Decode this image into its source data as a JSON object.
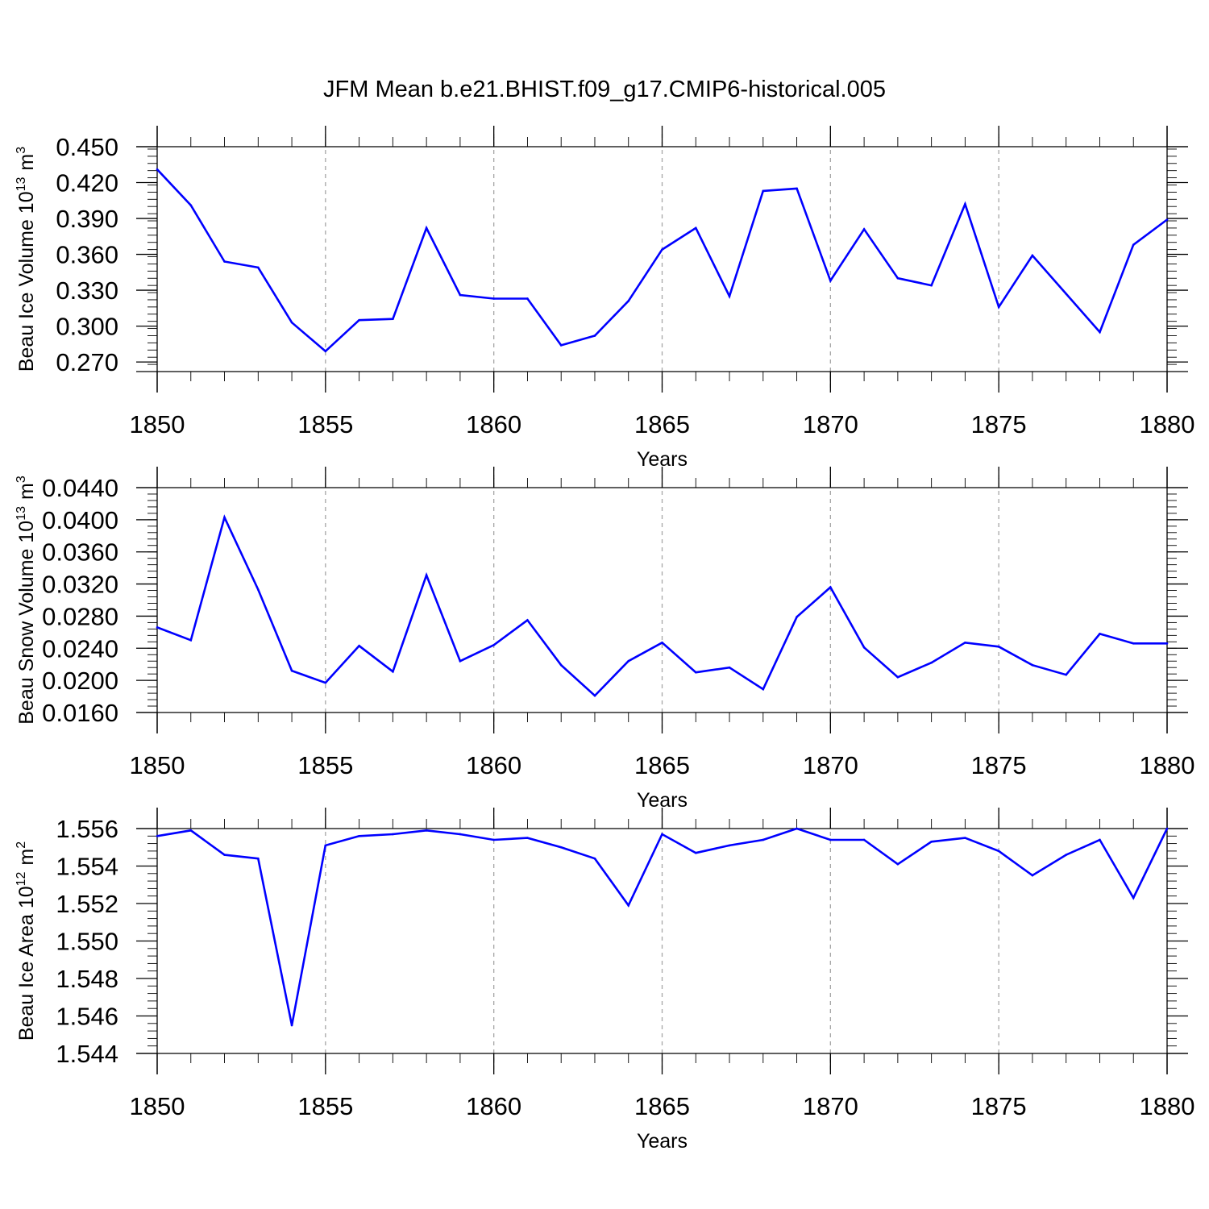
{
  "figure_title": "JFM Mean b.e21.BHIST.f09_g17.CMIP6-historical.005",
  "colors": {
    "line": "#0000ff",
    "axis": "#000000",
    "grid": "#a6a6a6"
  },
  "chart_data": [
    {
      "type": "line",
      "name": "ice-volume",
      "ylabel": "Beau Ice Volume 10",
      "ylabel_exponent": "13",
      "ylabel_unit": "m",
      "ylabel_unit_exponent": "3",
      "xlabel": "Years",
      "xlim": [
        1850,
        1880
      ],
      "ylim": [
        0.262,
        0.45
      ],
      "xticks": [
        1850,
        1855,
        1860,
        1865,
        1870,
        1875,
        1880
      ],
      "xtick_labels": [
        "1850",
        "1855",
        "1860",
        "1865",
        "1870",
        "1875",
        "1880"
      ],
      "yticks": [
        0.27,
        0.3,
        0.33,
        0.36,
        0.39,
        0.42,
        0.45
      ],
      "ytick_labels": [
        "0.270",
        "0.300",
        "0.330",
        "0.360",
        "0.390",
        "0.420",
        "0.450"
      ],
      "yminor_step": 0.006,
      "x": [
        1850,
        1851,
        1852,
        1853,
        1854,
        1855,
        1856,
        1857,
        1858,
        1859,
        1860,
        1861,
        1862,
        1863,
        1864,
        1865,
        1866,
        1867,
        1868,
        1869,
        1870,
        1871,
        1872,
        1873,
        1874,
        1875,
        1876,
        1877,
        1878,
        1879,
        1880
      ],
      "y": [
        0.431,
        0.401,
        0.354,
        0.349,
        0.303,
        0.279,
        0.305,
        0.306,
        0.382,
        0.326,
        0.323,
        0.323,
        0.284,
        0.292,
        0.321,
        0.364,
        0.382,
        0.325,
        0.413,
        0.415,
        0.338,
        0.381,
        0.34,
        0.334,
        0.402,
        0.316,
        0.359,
        0.327,
        0.295,
        0.368,
        0.389
      ]
    },
    {
      "type": "line",
      "name": "snow-volume",
      "ylabel": "Beau Snow Volume 10",
      "ylabel_exponent": "13",
      "ylabel_unit": "m",
      "ylabel_unit_exponent": "3",
      "xlabel": "Years",
      "xlim": [
        1850,
        1880
      ],
      "ylim": [
        0.016,
        0.044
      ],
      "xticks": [
        1850,
        1855,
        1860,
        1865,
        1870,
        1875,
        1880
      ],
      "xtick_labels": [
        "1850",
        "1855",
        "1860",
        "1865",
        "1870",
        "1875",
        "1880"
      ],
      "yticks": [
        0.016,
        0.02,
        0.024,
        0.028,
        0.032,
        0.036,
        0.04,
        0.044
      ],
      "ytick_labels": [
        "0.0160",
        "0.0200",
        "0.0240",
        "0.0280",
        "0.0320",
        "0.0360",
        "0.0400",
        "0.0440"
      ],
      "yminor_step": 0.0008,
      "x": [
        1850,
        1851,
        1852,
        1853,
        1854,
        1855,
        1856,
        1857,
        1858,
        1859,
        1860,
        1861,
        1862,
        1863,
        1864,
        1865,
        1866,
        1867,
        1868,
        1869,
        1870,
        1871,
        1872,
        1873,
        1874,
        1875,
        1876,
        1877,
        1878,
        1879,
        1880
      ],
      "y": [
        0.0266,
        0.025,
        0.0403,
        0.0313,
        0.0212,
        0.0197,
        0.0243,
        0.0211,
        0.0331,
        0.0224,
        0.0244,
        0.0275,
        0.0219,
        0.0181,
        0.0224,
        0.0247,
        0.021,
        0.0216,
        0.0189,
        0.0279,
        0.0316,
        0.0241,
        0.0204,
        0.0222,
        0.0247,
        0.0242,
        0.0219,
        0.0207,
        0.0258,
        0.0246,
        0.0246
      ]
    },
    {
      "type": "line",
      "name": "ice-area",
      "ylabel": "Beau Ice Area 10",
      "ylabel_exponent": "12",
      "ylabel_unit": "m",
      "ylabel_unit_exponent": "2",
      "xlabel": "Years",
      "xlim": [
        1850,
        1880
      ],
      "ylim": [
        1.544,
        1.556
      ],
      "xticks": [
        1850,
        1855,
        1860,
        1865,
        1870,
        1875,
        1880
      ],
      "xtick_labels": [
        "1850",
        "1855",
        "1860",
        "1865",
        "1870",
        "1875",
        "1880"
      ],
      "yticks": [
        1.544,
        1.546,
        1.548,
        1.55,
        1.552,
        1.554,
        1.556
      ],
      "ytick_labels": [
        "1.544",
        "1.546",
        "1.548",
        "1.550",
        "1.552",
        "1.554",
        "1.556"
      ],
      "yminor_step": 0.0004,
      "x": [
        1850,
        1851,
        1852,
        1853,
        1854,
        1855,
        1856,
        1857,
        1858,
        1859,
        1860,
        1861,
        1862,
        1863,
        1864,
        1865,
        1866,
        1867,
        1868,
        1869,
        1870,
        1871,
        1872,
        1873,
        1874,
        1875,
        1876,
        1877,
        1878,
        1879,
        1880
      ],
      "y": [
        1.5556,
        1.5559,
        1.5546,
        1.5544,
        1.5455,
        1.5551,
        1.5556,
        1.5557,
        1.5559,
        1.5557,
        1.5554,
        1.5555,
        1.555,
        1.5544,
        1.5519,
        1.5557,
        1.5547,
        1.5551,
        1.5554,
        1.556,
        1.5554,
        1.5554,
        1.5541,
        1.5553,
        1.5555,
        1.5548,
        1.5535,
        1.5546,
        1.5554,
        1.5523,
        1.556
      ]
    }
  ]
}
